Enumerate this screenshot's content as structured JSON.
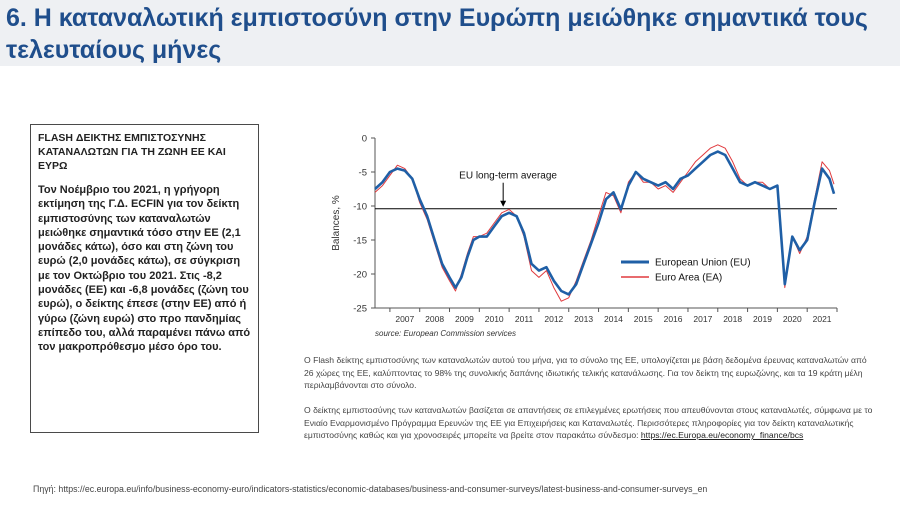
{
  "slide": {
    "title": "6. Η καταναλωτική εμπιστοσύνη στην Ευρώπη μειώθηκε σημαντικά τους τελευταίους μήνες"
  },
  "sidebar": {
    "heading": "FLASH ΔΕΙΚΤΗΣ ΕΜΠΙΣΤΟΣΥΝΗΣ ΚΑΤΑΝΑΛΩΤΩΝ ΓΙΑ ΤΗ ΖΩΝΗ ΕΕ ΚΑΙ ΕΥΡΩ",
    "body": "Τον Νοέμβριο του 2021, η γρήγορη εκτίμηση της Γ.Δ. ECFIN για τον δείκτη εμπιστοσύνης των καταναλωτών μειώθηκε σημαντικά τόσο στην ΕΕ (2,1 μονάδες κάτω), όσο και στη ζώνη του ευρώ (2,0 μονάδες κάτω), σε σύγκριση με τον Οκτώβριο του 2021. Στις -8,2 μονάδες (ΕΕ) και -6,8 μονάδες (ζώνη του ευρώ), ο δείκτης έπεσε (στην ΕΕ) από ή γύρω (ζώνη ευρώ) στο προ πανδημίας επίπεδο του, αλλά παραμένει πάνω από τον μακροπρόθεσμο μέσο όρο του."
  },
  "captions": {
    "paragraph1": "Ο Flash δείκτης εμπιστοσύνης των καταναλωτών αυτού του μήνα, για το σύνολο της ΕΕ, υπολογίζεται με βάση δεδομένα έρευνας καταναλωτών από 26 χώρες της ΕΕ, καλύπτοντας το 98% της συνολικής δαπάνης ιδιωτικής τελικής κατανάλωσης. Για τον δείκτη της ευρωζώνης, και τα 19 κράτη μέλη περιλαμβάνονται στο σύνολο.",
    "paragraph2": "Ο δείκτης εμπιστοσύνης των καταναλωτών βασίζεται σε απαντήσεις σε επιλεγμένες ερωτήσεις που απευθύνονται στους καταναλωτές, σύμφωνα με το Ενιαίο Εναρμονισμένο Πρόγραμμα Ερευνών της ΕΕ για Επιχειρήσεις και Καταναλωτές. Περισσότερες πληροφορίες για τον δείκτη καταναλωτικής εμπιστοσύνης καθώς και για χρονοσειρές μπορείτε να βρείτε στον παρακάτω σύνδεσμο:",
    "link_text": "https://ec.Europa.eu/economy_finance/bcs"
  },
  "source_text": "Πηγή: https://ec.europa.eu/info/business-economy-euro/indicators-statistics/economic-databases/business-and-consumer-surveys/latest-business-and-consumer-surveys_en",
  "colors": {
    "title": "#1f4e8c",
    "eu_series": "#1f5fa6",
    "ea_series": "#e03a3e",
    "longterm_line": "#000000",
    "header_band": "#eef0f3"
  },
  "chart_data": {
    "type": "line",
    "title": "",
    "xlabel": "",
    "ylabel": "Balances, %",
    "xlim": [
      2006.5,
      2022.0
    ],
    "ylim": [
      -25,
      0
    ],
    "yticks": [
      0,
      -5,
      -10,
      -15,
      -20,
      -25
    ],
    "xticks": [
      "2007",
      "2008",
      "2009",
      "2010",
      "2011",
      "2012",
      "2013",
      "2014",
      "2015",
      "2016",
      "2017",
      "2018",
      "2019",
      "2020",
      "2021"
    ],
    "annotation": "EU long-term average",
    "annotation_point": {
      "x": 2010.8,
      "y": -10.4
    },
    "longterm_average": -10.4,
    "legend": [
      "European Union (EU)",
      "Euro Area (EA)"
    ],
    "legend_position": "bottom-right",
    "source_note": "source: European Commission services",
    "series": [
      {
        "name": "European Union (EU)",
        "points": [
          [
            2006.5,
            -7.5
          ],
          [
            2006.75,
            -6.5
          ],
          [
            2007.0,
            -5.0
          ],
          [
            2007.25,
            -4.5
          ],
          [
            2007.5,
            -4.8
          ],
          [
            2007.75,
            -6.0
          ],
          [
            2008.0,
            -9.0
          ],
          [
            2008.25,
            -11.5
          ],
          [
            2008.5,
            -15.0
          ],
          [
            2008.75,
            -18.5
          ],
          [
            2009.0,
            -20.5
          ],
          [
            2009.2,
            -22.0
          ],
          [
            2009.4,
            -20.5
          ],
          [
            2009.6,
            -17.5
          ],
          [
            2009.8,
            -15.0
          ],
          [
            2010.0,
            -14.5
          ],
          [
            2010.25,
            -14.5
          ],
          [
            2010.5,
            -13.0
          ],
          [
            2010.75,
            -11.5
          ],
          [
            2011.0,
            -11.0
          ],
          [
            2011.25,
            -11.5
          ],
          [
            2011.5,
            -14.0
          ],
          [
            2011.75,
            -18.5
          ],
          [
            2012.0,
            -19.5
          ],
          [
            2012.25,
            -19.0
          ],
          [
            2012.5,
            -21.0
          ],
          [
            2012.75,
            -22.5
          ],
          [
            2013.0,
            -23.0
          ],
          [
            2013.25,
            -21.5
          ],
          [
            2013.5,
            -18.5
          ],
          [
            2013.75,
            -15.5
          ],
          [
            2014.0,
            -12.5
          ],
          [
            2014.25,
            -9.0
          ],
          [
            2014.5,
            -8.0
          ],
          [
            2014.75,
            -10.5
          ],
          [
            2015.0,
            -7.0
          ],
          [
            2015.25,
            -5.0
          ],
          [
            2015.5,
            -6.0
          ],
          [
            2015.75,
            -6.5
          ],
          [
            2016.0,
            -7.0
          ],
          [
            2016.25,
            -6.5
          ],
          [
            2016.5,
            -7.5
          ],
          [
            2016.75,
            -6.0
          ],
          [
            2017.0,
            -5.5
          ],
          [
            2017.25,
            -4.5
          ],
          [
            2017.5,
            -3.5
          ],
          [
            2017.75,
            -2.5
          ],
          [
            2018.0,
            -2.0
          ],
          [
            2018.25,
            -2.5
          ],
          [
            2018.5,
            -4.5
          ],
          [
            2018.75,
            -6.5
          ],
          [
            2019.0,
            -7.0
          ],
          [
            2019.25,
            -6.5
          ],
          [
            2019.5,
            -7.0
          ],
          [
            2019.75,
            -7.5
          ],
          [
            2020.0,
            -7.0
          ],
          [
            2020.25,
            -21.5
          ],
          [
            2020.5,
            -14.5
          ],
          [
            2020.75,
            -16.5
          ],
          [
            2021.0,
            -15.0
          ],
          [
            2021.25,
            -9.5
          ],
          [
            2021.5,
            -4.5
          ],
          [
            2021.75,
            -6.0
          ],
          [
            2021.9,
            -8.2
          ]
        ]
      },
      {
        "name": "Euro Area (EA)",
        "points": [
          [
            2006.5,
            -8.0
          ],
          [
            2006.75,
            -7.0
          ],
          [
            2007.0,
            -5.5
          ],
          [
            2007.25,
            -4.0
          ],
          [
            2007.5,
            -4.5
          ],
          [
            2007.75,
            -6.0
          ],
          [
            2008.0,
            -9.5
          ],
          [
            2008.25,
            -12.0
          ],
          [
            2008.5,
            -15.5
          ],
          [
            2008.75,
            -19.0
          ],
          [
            2009.0,
            -21.0
          ],
          [
            2009.2,
            -22.5
          ],
          [
            2009.4,
            -20.0
          ],
          [
            2009.6,
            -17.0
          ],
          [
            2009.8,
            -14.5
          ],
          [
            2010.0,
            -14.5
          ],
          [
            2010.25,
            -14.0
          ],
          [
            2010.5,
            -12.5
          ],
          [
            2010.75,
            -11.0
          ],
          [
            2011.0,
            -10.5
          ],
          [
            2011.25,
            -11.5
          ],
          [
            2011.5,
            -14.5
          ],
          [
            2011.75,
            -19.5
          ],
          [
            2012.0,
            -20.5
          ],
          [
            2012.25,
            -19.5
          ],
          [
            2012.5,
            -22.0
          ],
          [
            2012.75,
            -24.0
          ],
          [
            2013.0,
            -23.5
          ],
          [
            2013.25,
            -21.0
          ],
          [
            2013.5,
            -18.0
          ],
          [
            2013.75,
            -15.0
          ],
          [
            2014.0,
            -11.5
          ],
          [
            2014.25,
            -8.0
          ],
          [
            2014.5,
            -8.5
          ],
          [
            2014.75,
            -11.0
          ],
          [
            2015.0,
            -6.5
          ],
          [
            2015.25,
            -5.0
          ],
          [
            2015.5,
            -6.5
          ],
          [
            2015.75,
            -6.5
          ],
          [
            2016.0,
            -7.5
          ],
          [
            2016.25,
            -7.0
          ],
          [
            2016.5,
            -8.0
          ],
          [
            2016.75,
            -6.5
          ],
          [
            2017.0,
            -5.0
          ],
          [
            2017.25,
            -3.5
          ],
          [
            2017.5,
            -2.5
          ],
          [
            2017.75,
            -1.5
          ],
          [
            2018.0,
            -1.0
          ],
          [
            2018.25,
            -1.5
          ],
          [
            2018.5,
            -3.5
          ],
          [
            2018.75,
            -6.0
          ],
          [
            2019.0,
            -7.0
          ],
          [
            2019.25,
            -6.5
          ],
          [
            2019.5,
            -6.5
          ],
          [
            2019.75,
            -7.5
          ],
          [
            2020.0,
            -7.0
          ],
          [
            2020.25,
            -22.0
          ],
          [
            2020.5,
            -14.5
          ],
          [
            2020.75,
            -17.0
          ],
          [
            2021.0,
            -14.5
          ],
          [
            2021.25,
            -9.0
          ],
          [
            2021.5,
            -3.5
          ],
          [
            2021.75,
            -4.8
          ],
          [
            2021.9,
            -6.8
          ]
        ]
      }
    ]
  }
}
